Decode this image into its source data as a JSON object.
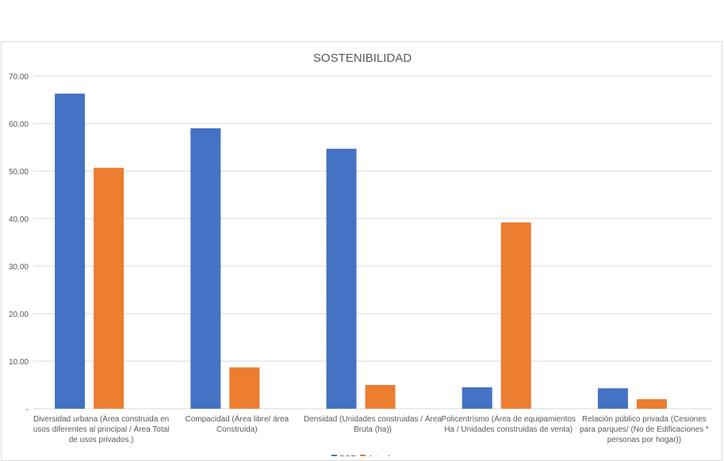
{
  "chart_data": {
    "type": "bar",
    "title": "SOSTENIBILIDAD",
    "xlabel": "",
    "ylabel": "",
    "ylim": [
      0,
      70
    ],
    "yticks": [
      "-",
      "10.00",
      "20.00",
      "30.00",
      "40.00",
      "50.00",
      "60.00",
      "70.00"
    ],
    "grid": true,
    "legend_placement": "bottom",
    "categories": [
      [
        "Diversidad urbana (Área construida en",
        "usos diferentes al principal / Área Total",
        "de usos privados.)"
      ],
      [
        "Compacidad (Área libre/ área",
        "Construida)"
      ],
      [
        "Densidad (Unidades construidas / Área",
        "Bruta (ha))"
      ],
      [
        "Policentrísmo (Área de equipamientos",
        "Ha / Unidades construidas de venta)"
      ],
      [
        "Relación público privada (Cesiones",
        "para parques/ (No de Edificaciones *",
        "personas por hogar))"
      ]
    ],
    "series": [
      {
        "name": "POT",
        "color": "#4472c4",
        "values": [
          66.3,
          59.0,
          54.7,
          4.5,
          4.3
        ]
      },
      {
        "name": "Actual",
        "color": "#ed7d31",
        "values": [
          50.7,
          8.7,
          5.0,
          39.2,
          2.0
        ]
      }
    ]
  }
}
